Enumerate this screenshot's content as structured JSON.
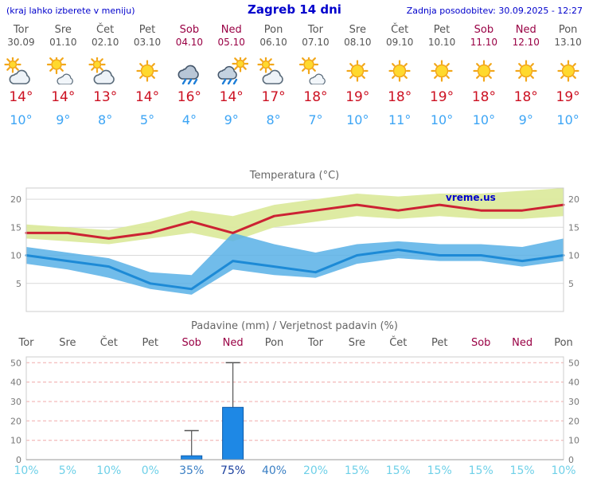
{
  "header": {
    "hint": "(kraj lahko izberete v meniju)",
    "title": "Zagreb 14 dni",
    "last_update": "Zadnja posodobitev: 30.09.2025 - 12:27"
  },
  "colors": {
    "header_blue": "#0000cc",
    "tmax_red": "#cc1122",
    "tmin_blue": "#3da5f5",
    "weekday_text": "#555555",
    "weekend_text": "#990044",
    "chart_title_gray": "#666666",
    "axis_label_gray": "#777777",
    "grid_gray": "#d9d9d9",
    "grid_pink": "#f0aaaa",
    "plot_border": "#cccccc"
  },
  "days": [
    {
      "day": "Tor",
      "date": "30.09",
      "weekend": false,
      "icon": "mostly-cloudy",
      "tmax": "14°",
      "tmin": "10°"
    },
    {
      "day": "Sre",
      "date": "01.10",
      "weekend": false,
      "icon": "partly-cloudy",
      "tmax": "14°",
      "tmin": "9°"
    },
    {
      "day": "Čet",
      "date": "02.10",
      "weekend": false,
      "icon": "mostly-cloudy",
      "tmax": "13°",
      "tmin": "8°"
    },
    {
      "day": "Pet",
      "date": "03.10",
      "weekend": false,
      "icon": "sunny",
      "tmax": "14°",
      "tmin": "5°"
    },
    {
      "day": "Sob",
      "date": "04.10",
      "weekend": true,
      "icon": "rain",
      "tmax": "16°",
      "tmin": "4°"
    },
    {
      "day": "Ned",
      "date": "05.10",
      "weekend": true,
      "icon": "rain-sun",
      "tmax": "14°",
      "tmin": "9°"
    },
    {
      "day": "Pon",
      "date": "06.10",
      "weekend": false,
      "icon": "mostly-cloudy",
      "tmax": "17°",
      "tmin": "8°"
    },
    {
      "day": "Tor",
      "date": "07.10",
      "weekend": false,
      "icon": "partly-cloudy",
      "tmax": "18°",
      "tmin": "7°"
    },
    {
      "day": "Sre",
      "date": "08.10",
      "weekend": false,
      "icon": "sunny",
      "tmax": "19°",
      "tmin": "10°"
    },
    {
      "day": "Čet",
      "date": "09.10",
      "weekend": false,
      "icon": "sunny",
      "tmax": "18°",
      "tmin": "11°"
    },
    {
      "day": "Pet",
      "date": "10.10",
      "weekend": false,
      "icon": "sunny",
      "tmax": "19°",
      "tmin": "10°"
    },
    {
      "day": "Sob",
      "date": "11.10",
      "weekend": true,
      "icon": "sunny",
      "tmax": "18°",
      "tmin": "10°"
    },
    {
      "day": "Ned",
      "date": "12.10",
      "weekend": true,
      "icon": "sunny",
      "tmax": "18°",
      "tmin": "9°"
    },
    {
      "day": "Pon",
      "date": "13.10",
      "weekend": false,
      "icon": "sunny",
      "tmax": "19°",
      "tmin": "10°"
    }
  ],
  "chart_data": [
    {
      "type": "line",
      "title": "Temperatura (°C)",
      "watermark": "vreme.us",
      "ylim": [
        0,
        22
      ],
      "yticks": [
        5,
        10,
        15,
        20
      ],
      "categories": [
        "Tor 30.09",
        "Sre 01.10",
        "Čet 02.10",
        "Pet 03.10",
        "Sob 04.10",
        "Ned 05.10",
        "Pon 06.10",
        "Tor 07.10",
        "Sre 08.10",
        "Čet 09.10",
        "Pet 10.10",
        "Sob 11.10",
        "Ned 12.10",
        "Pon 13.10"
      ],
      "series": [
        {
          "name": "max-temperature",
          "color": "#cc2233",
          "values": [
            14,
            14,
            13,
            14,
            16,
            14,
            17,
            18,
            19,
            18,
            19,
            18,
            18,
            19
          ]
        },
        {
          "name": "min-temperature",
          "color": "#1d8ad6",
          "values": [
            10,
            9,
            8,
            5,
            4,
            9,
            8,
            7,
            10,
            11,
            10,
            10,
            9,
            10
          ]
        }
      ],
      "bands": [
        {
          "name": "max-range",
          "color": "#dcea9e",
          "opacity": 0.95,
          "upper": [
            15.5,
            15,
            14.5,
            16,
            18,
            17,
            19,
            20,
            21,
            20.5,
            21,
            21,
            21.5,
            22
          ],
          "lower": [
            13,
            12.5,
            12,
            13,
            14,
            12.5,
            15,
            16,
            17,
            16.5,
            17,
            16.5,
            16.5,
            17
          ]
        },
        {
          "name": "min-range",
          "color": "#58b0e6",
          "opacity": 0.85,
          "upper": [
            11.5,
            10.5,
            9.5,
            7,
            6.5,
            14,
            12,
            10.5,
            12,
            12.5,
            12,
            12,
            11.5,
            13
          ],
          "lower": [
            8.5,
            7.5,
            6,
            4,
            3,
            7.5,
            6.5,
            6,
            8.5,
            9.5,
            9,
            9,
            8,
            9
          ]
        }
      ]
    },
    {
      "type": "bar",
      "title": "Padavine (mm) / Verjetnost padavin (%)",
      "ylim": [
        0,
        53
      ],
      "yticks": [
        0,
        10,
        20,
        30,
        40,
        50
      ],
      "day_labels": [
        "Tor",
        "Sre",
        "Čet",
        "Pet",
        "Sob",
        "Ned",
        "Pon",
        "Tor",
        "Sre",
        "Čet",
        "Pet",
        "Sob",
        "Ned",
        "Pon"
      ],
      "weekend": [
        false,
        false,
        false,
        false,
        true,
        true,
        false,
        false,
        false,
        false,
        false,
        true,
        true,
        false
      ],
      "precip_mm": [
        0,
        0,
        0,
        0,
        2,
        27,
        0,
        0,
        0,
        0,
        0,
        0,
        0,
        0
      ],
      "precip_max_mm": [
        0,
        0,
        0,
        0,
        15,
        50,
        0,
        0,
        0,
        0,
        0,
        0,
        0,
        0
      ],
      "bar_color": "#1e88e5",
      "bar_border": "#0d5cab",
      "probability_pct": [
        "10%",
        "5%",
        "10%",
        "0%",
        "35%",
        "75%",
        "40%",
        "20%",
        "15%",
        "15%",
        "15%",
        "15%",
        "15%",
        "10%"
      ],
      "probability_colors": [
        "#6ed0e8",
        "#6ed0e8",
        "#6ed0e8",
        "#6ed0e8",
        "#3a7fc4",
        "#1a3f9e",
        "#3a7fc4",
        "#6ed0e8",
        "#6ed0e8",
        "#6ed0e8",
        "#6ed0e8",
        "#6ed0e8",
        "#6ed0e8",
        "#6ed0e8"
      ]
    }
  ]
}
